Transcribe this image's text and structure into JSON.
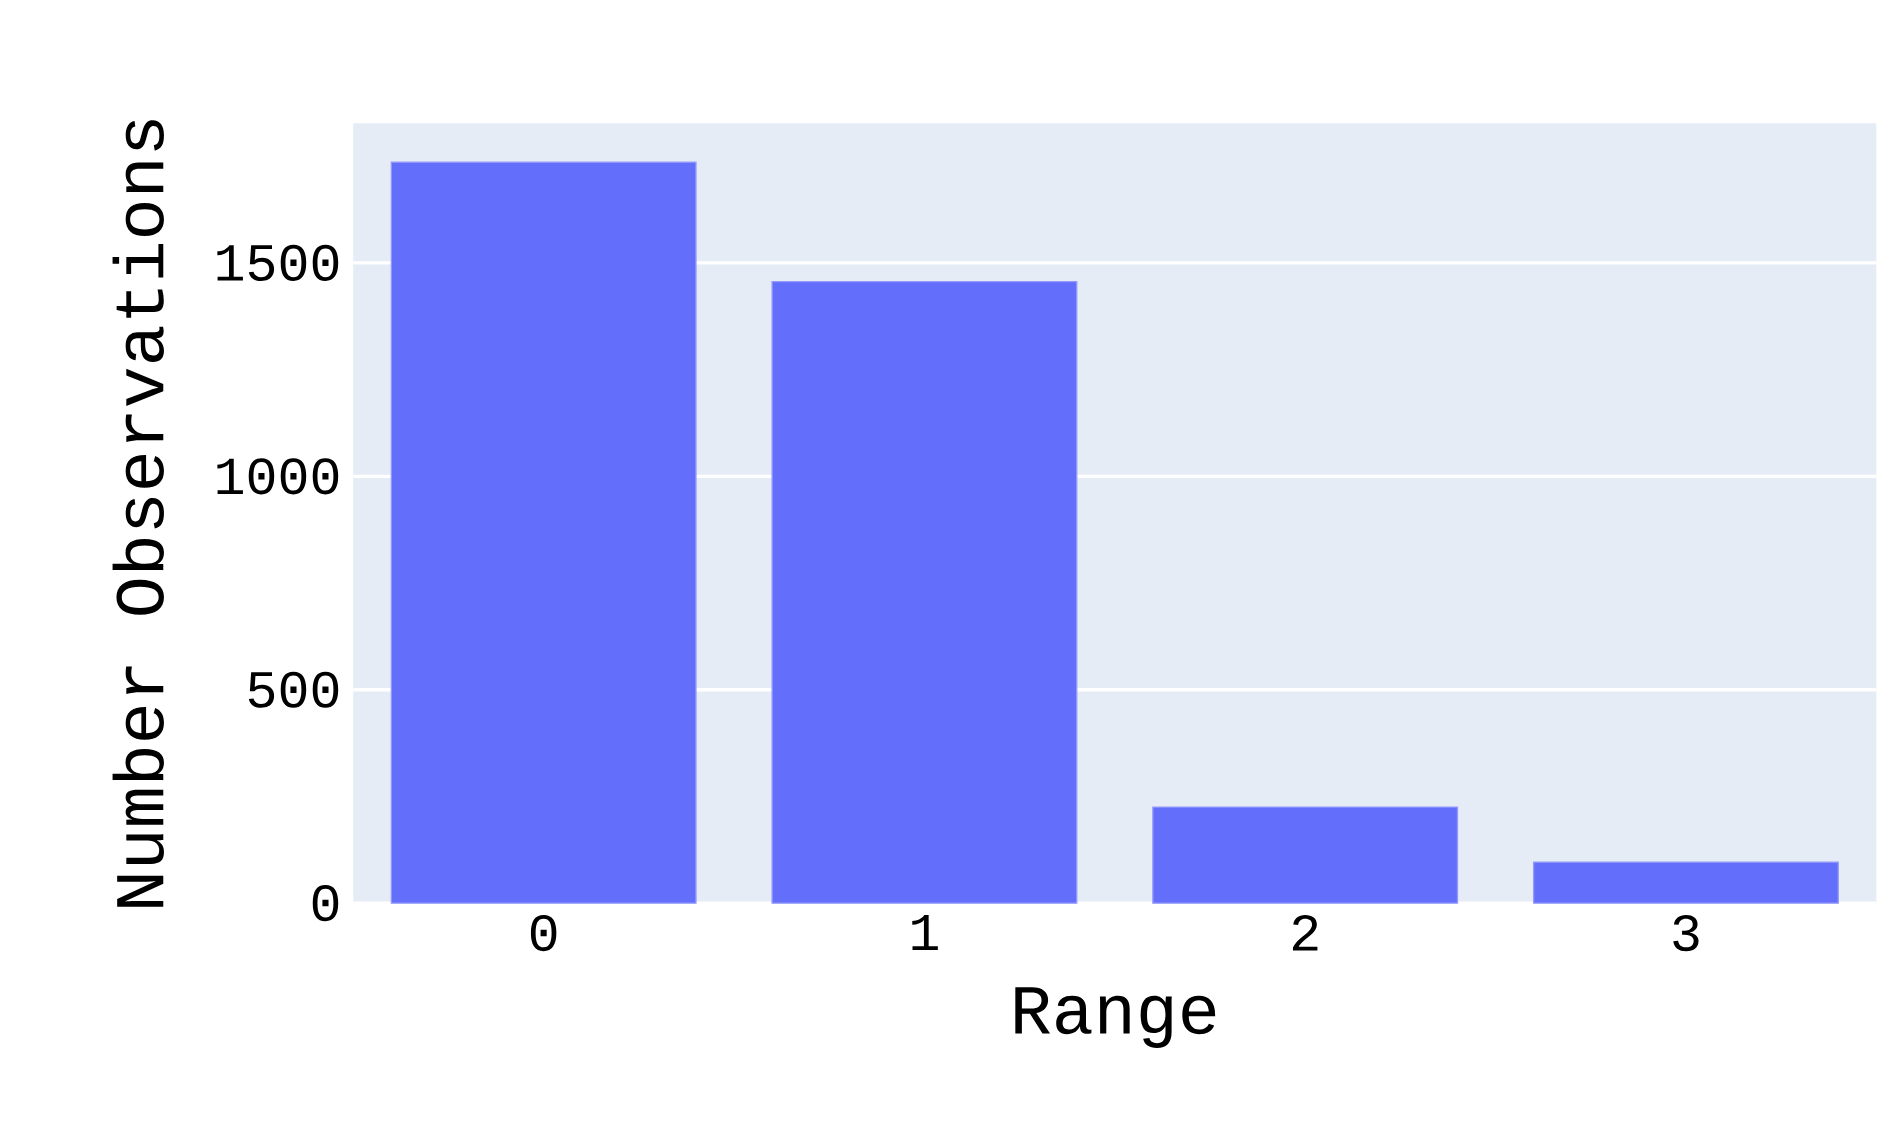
{
  "chart_data": {
    "type": "bar",
    "xlabel": "Range",
    "ylabel": "Number Observations",
    "categories": [
      "0",
      "1",
      "2",
      "3"
    ],
    "values": [
      1736,
      1456,
      225,
      96
    ],
    "color": "#636efa",
    "ylim": [
      0,
      1827
    ],
    "yticks": [
      0,
      500,
      1000,
      1500
    ],
    "grid": "y"
  }
}
